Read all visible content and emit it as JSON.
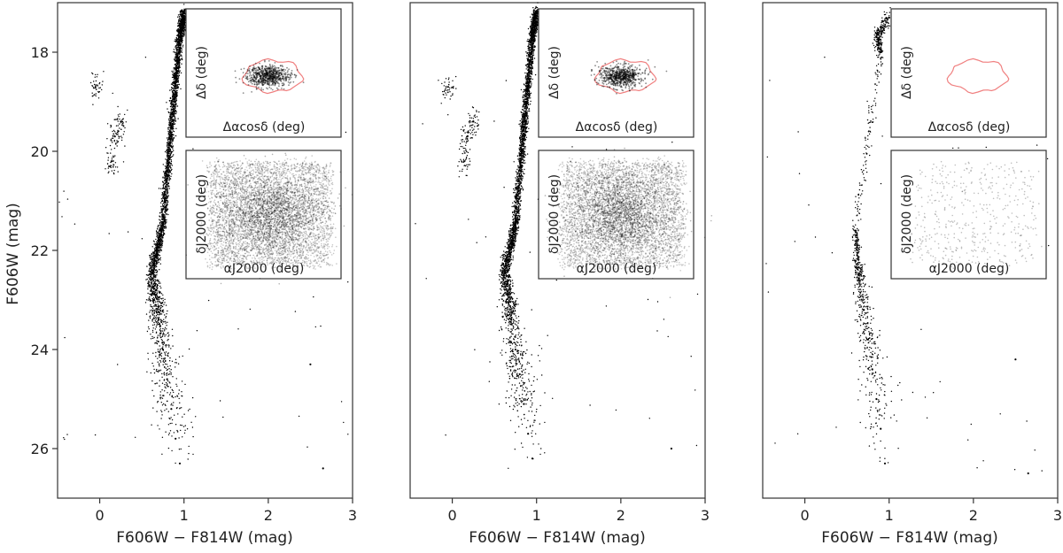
{
  "chart_data": [
    {
      "type": "scatter",
      "panel": "left",
      "xlabel": "F606W − F814W (mag)",
      "ylabel": "F606W (mag)",
      "xlim": [
        -0.5,
        3.0
      ],
      "ylim": [
        27.0,
        17.0
      ],
      "y_inverted": true,
      "xticks": [
        "0",
        "1",
        "2",
        "3"
      ],
      "yticks": [
        "18",
        "20",
        "22",
        "24",
        "26"
      ],
      "grid": false,
      "series": [
        {
          "values": [
            [
              0.95,
              26.3
            ],
            [
              0.9,
              25.8
            ],
            [
              0.85,
              25.2
            ],
            [
              0.8,
              24.6
            ],
            [
              0.75,
              24.0
            ],
            [
              0.7,
              23.4
            ],
            [
              0.66,
              22.9
            ],
            [
              0.62,
              22.4
            ],
            [
              0.68,
              22.0
            ],
            [
              0.75,
              21.5
            ],
            [
              0.8,
              20.5
            ],
            [
              0.85,
              19.5
            ],
            [
              0.9,
              18.6
            ],
            [
              0.95,
              17.7
            ],
            [
              1.0,
              17.2
            ],
            [
              0.25,
              19.4
            ],
            [
              0.18,
              19.7
            ],
            [
              0.14,
              20.2
            ],
            [
              -0.05,
              18.7
            ],
            [
              2.5,
              24.3
            ],
            [
              2.65,
              26.4
            ]
          ]
        }
      ],
      "insets": [
        {
          "xlabel": "Δαcosδ (deg)",
          "ylabel": "Δδ (deg)",
          "contour": true
        },
        {
          "xlabel": "αJ2000 (deg)",
          "ylabel": "δJ2000 (deg)",
          "density": "high"
        }
      ]
    },
    {
      "type": "scatter",
      "panel": "middle",
      "xlabel": "F606W − F814W (mag)",
      "ylabel": "",
      "xlim": [
        -0.5,
        3.0
      ],
      "ylim": [
        27.0,
        17.0
      ],
      "y_inverted": true,
      "xticks": [
        "0",
        "1",
        "2",
        "3"
      ],
      "yticks": [],
      "grid": false,
      "series": [
        {
          "values": [
            [
              0.95,
              26.2
            ],
            [
              0.9,
              25.7
            ],
            [
              0.85,
              25.1
            ],
            [
              0.8,
              24.5
            ],
            [
              0.75,
              24.0
            ],
            [
              0.7,
              23.4
            ],
            [
              0.66,
              22.9
            ],
            [
              0.62,
              22.4
            ],
            [
              0.68,
              22.0
            ],
            [
              0.75,
              21.5
            ],
            [
              0.8,
              20.5
            ],
            [
              0.85,
              19.5
            ],
            [
              0.9,
              18.6
            ],
            [
              0.95,
              17.7
            ],
            [
              1.0,
              17.2
            ],
            [
              0.25,
              19.4
            ],
            [
              0.18,
              19.7
            ],
            [
              0.14,
              20.2
            ],
            [
              -0.05,
              18.7
            ],
            [
              2.6,
              26.0
            ]
          ]
        }
      ],
      "insets": [
        {
          "xlabel": "Δαcosδ (deg)",
          "ylabel": "Δδ (deg)",
          "contour": true
        },
        {
          "xlabel": "αJ2000 (deg)",
          "ylabel": "δJ2000 (deg)",
          "density": "high"
        }
      ]
    },
    {
      "type": "scatter",
      "panel": "right",
      "xlabel": "F606W − F814W (mag)",
      "ylabel": "",
      "xlim": [
        -0.5,
        3.0
      ],
      "ylim": [
        27.0,
        17.0
      ],
      "y_inverted": true,
      "xticks": [
        "0",
        "1",
        "2",
        "3"
      ],
      "yticks": [],
      "grid": false,
      "series": [
        {
          "values": [
            [
              0.95,
              26.3
            ],
            [
              0.9,
              25.6
            ],
            [
              0.85,
              25.0
            ],
            [
              0.8,
              24.4
            ],
            [
              0.75,
              23.8
            ],
            [
              0.7,
              23.2
            ],
            [
              0.65,
              22.6
            ],
            [
              0.62,
              22.1
            ],
            [
              0.6,
              21.6
            ],
            [
              1.0,
              17.3
            ],
            [
              0.85,
              17.7
            ],
            [
              0.9,
              18.0
            ],
            [
              2.65,
              26.5
            ],
            [
              2.5,
              24.2
            ]
          ]
        }
      ],
      "insets": [
        {
          "xlabel": "Δαcosδ (deg)",
          "ylabel": "Δδ (deg)",
          "contour": true
        },
        {
          "xlabel": "αJ2000 (deg)",
          "ylabel": "δJ2000 (deg)",
          "density": "low"
        }
      ]
    }
  ],
  "colors": {
    "points": "#000000",
    "contour": "#f08080",
    "axes": "#333333"
  }
}
